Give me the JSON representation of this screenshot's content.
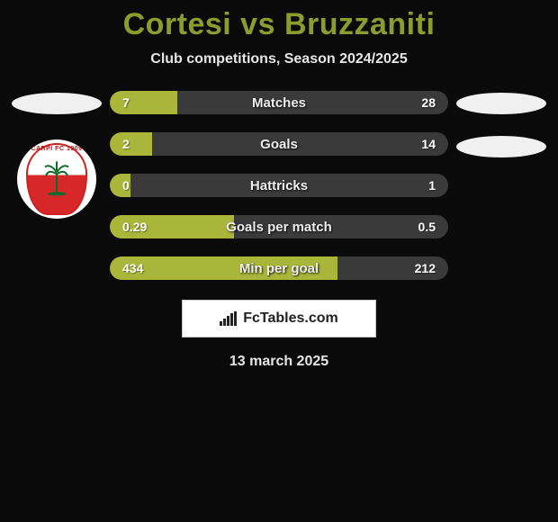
{
  "header": {
    "title": "Cortesi vs Bruzzaniti",
    "subtitle": "Club competitions, Season 2024/2025"
  },
  "colors": {
    "accent": "#8a9d2e",
    "bar_fill_left": "#aab63a",
    "bar_bg": "#3a3a3a",
    "background": "#0a0a0a",
    "text": "#ffffff"
  },
  "left_badge": {
    "name": "Carpi FC 1909",
    "top_text": "CARPI FC 1909"
  },
  "stats": {
    "rows": [
      {
        "label": "Matches",
        "left": "7",
        "right": "28",
        "left_pct": 20,
        "right_pct": 80
      },
      {
        "label": "Goals",
        "left": "2",
        "right": "14",
        "left_pct": 12.5,
        "right_pct": 87.5
      },
      {
        "label": "Hattricks",
        "left": "0",
        "right": "1",
        "left_pct": 6,
        "right_pct": 94
      },
      {
        "label": "Goals per match",
        "left": "0.29",
        "right": "0.5",
        "left_pct": 36.7,
        "right_pct": 63.3
      },
      {
        "label": "Min per goal",
        "left": "434",
        "right": "212",
        "left_pct": 67.2,
        "right_pct": 32.8
      }
    ]
  },
  "brand": {
    "text": "FcTables.com"
  },
  "footer": {
    "date": "13 march 2025"
  }
}
